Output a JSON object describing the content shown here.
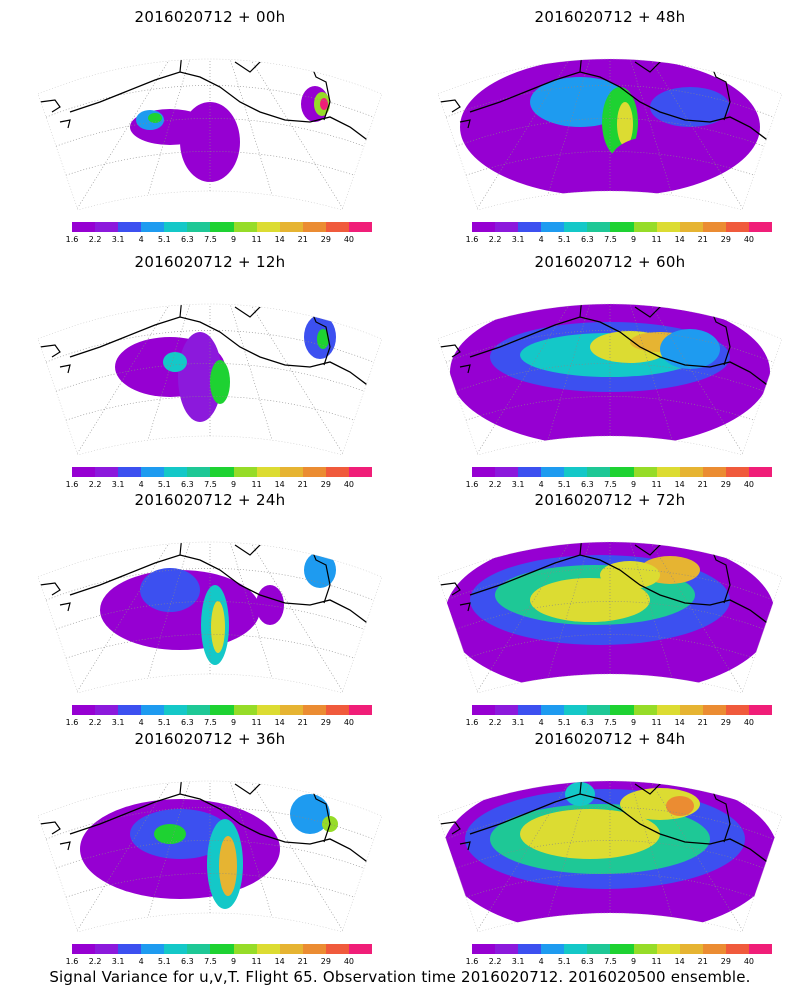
{
  "caption": "Signal Variance for u,v,T. Flight 65. Observation time 2016020712. 2016020500 ensemble.",
  "colorbar": {
    "labels": [
      "1.6",
      "2.2",
      "3.1",
      "4",
      "5.1",
      "6.3",
      "7.5",
      "9",
      "11",
      "14",
      "21",
      "29",
      "40"
    ],
    "colors": [
      "#9600d2",
      "#8c19dc",
      "#3c50f0",
      "#1e9bf0",
      "#14c8c8",
      "#1ec896",
      "#1ed232",
      "#96dc28",
      "#dcdc32",
      "#e6b432",
      "#eb8c32",
      "#f05a3c",
      "#f01e78"
    ]
  },
  "panels": [
    {
      "title": "2016020712 + 00h"
    },
    {
      "title": "2016020712 + 48h"
    },
    {
      "title": "2016020712 + 12h"
    },
    {
      "title": "2016020712 + 60h"
    },
    {
      "title": "2016020712 + 24h"
    },
    {
      "title": "2016020712 + 72h"
    },
    {
      "title": "2016020712 + 36h"
    },
    {
      "title": "2016020712 + 84h"
    }
  ]
}
